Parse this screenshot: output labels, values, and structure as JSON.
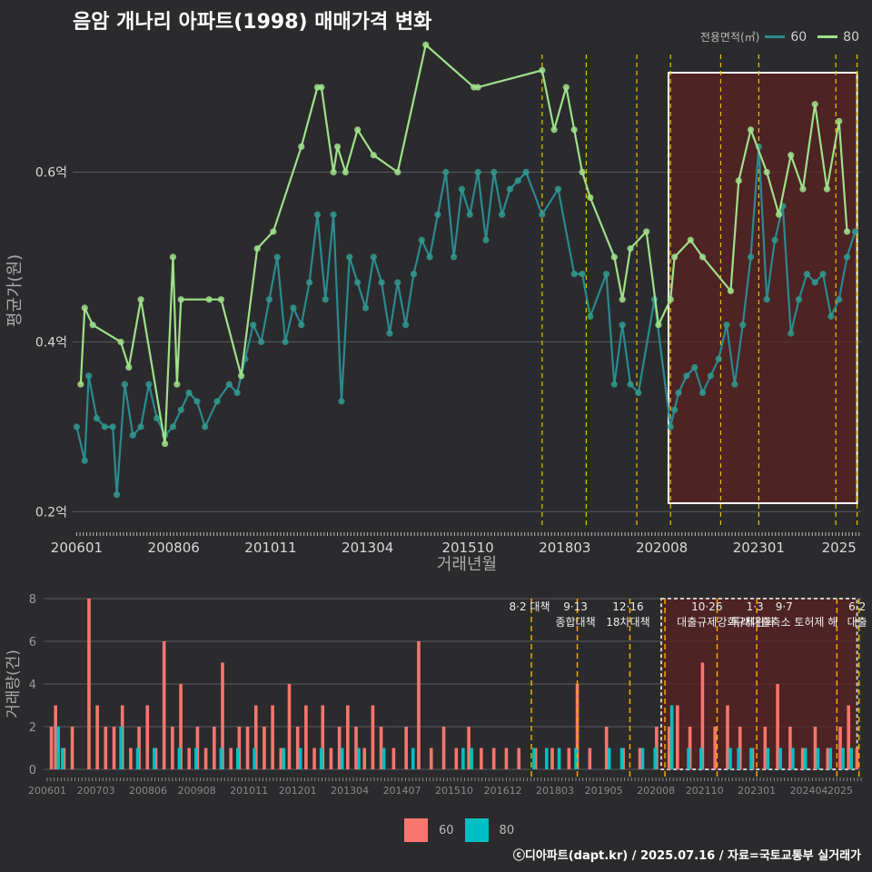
{
  "title": "음암 개나리 아파트(1998) 매매가격 변화",
  "legend_title": "전용면적(㎡)",
  "footer": "ⓒ디아파트(dapt.kr) / 2025.07.16 / 자료=국토교통부 실거래가",
  "colors": {
    "bg": "#2b2b2d",
    "grid": "#5a5a5c",
    "s60_line": "#2a8a8f",
    "s60_point": "#2f9a8e",
    "s80": "#9fe08a",
    "bar60": "#f8766d",
    "bar80": "#00bfc4",
    "policy": "#e8c400",
    "highlight_fill": "#5a2121",
    "highlight_border": "#ffffff"
  },
  "chart_data": [
    {
      "type": "line",
      "title": "음암 개나리 아파트(1998) 매매가격 변화",
      "xlabel": "거래년월",
      "ylabel": "평균가(원)",
      "x_ticks": [
        "200601",
        "200806",
        "201011",
        "201304",
        "201510",
        "201803",
        "202008",
        "202301",
        "2025"
      ],
      "y_ticks": [
        {
          "v": 0.2,
          "label": "0.2억"
        },
        {
          "v": 0.4,
          "label": "0.4억"
        },
        {
          "v": 0.6,
          "label": "0.6억"
        }
      ],
      "ylim": [
        0.18,
        0.76
      ],
      "xlim": [
        2005.9,
        2025.55
      ],
      "legend": "top-right",
      "highlight_range": [
        2020.75,
        2025.45
      ],
      "policy_dates": [
        2017.6,
        2018.7,
        2019.96,
        2020.8,
        2022.05,
        2023.0,
        2024.92,
        2025.45
      ],
      "series": [
        {
          "name": "60",
          "x": [
            2006.0,
            2006.2,
            2006.3,
            2006.5,
            2006.7,
            2006.9,
            2007.0,
            2007.2,
            2007.4,
            2007.6,
            2007.8,
            2008.0,
            2008.2,
            2008.4,
            2008.6,
            2008.8,
            2009.0,
            2009.2,
            2009.5,
            2009.8,
            2010.0,
            2010.2,
            2010.4,
            2010.6,
            2010.8,
            2011.0,
            2011.2,
            2011.4,
            2011.6,
            2011.8,
            2012.0,
            2012.2,
            2012.4,
            2012.6,
            2012.8,
            2013.0,
            2013.2,
            2013.4,
            2013.6,
            2013.8,
            2014.0,
            2014.2,
            2014.4,
            2014.6,
            2014.8,
            2015.0,
            2015.2,
            2015.4,
            2015.6,
            2015.8,
            2016.0,
            2016.2,
            2016.4,
            2016.6,
            2016.8,
            2017.0,
            2017.2,
            2017.6,
            2018.0,
            2018.4,
            2018.6,
            2018.8,
            2019.2,
            2019.4,
            2019.6,
            2019.8,
            2020.0,
            2020.4,
            2020.8,
            2020.9,
            2021.0,
            2021.2,
            2021.4,
            2021.6,
            2021.8,
            2022.0,
            2022.2,
            2022.4,
            2022.6,
            2022.8,
            2023.0,
            2023.2,
            2023.4,
            2023.6,
            2023.8,
            2024.0,
            2024.2,
            2024.4,
            2024.6,
            2024.8,
            2025.0,
            2025.2,
            2025.4
          ],
          "values": [
            0.3,
            0.26,
            0.36,
            0.31,
            0.3,
            0.3,
            0.22,
            0.35,
            0.29,
            0.3,
            0.35,
            0.31,
            0.29,
            0.3,
            0.32,
            0.34,
            0.33,
            0.3,
            0.33,
            0.35,
            0.34,
            0.38,
            0.42,
            0.4,
            0.45,
            0.5,
            0.4,
            0.44,
            0.42,
            0.47,
            0.55,
            0.45,
            0.55,
            0.33,
            0.5,
            0.47,
            0.44,
            0.5,
            0.47,
            0.41,
            0.47,
            0.42,
            0.48,
            0.52,
            0.5,
            0.55,
            0.6,
            0.5,
            0.58,
            0.55,
            0.6,
            0.52,
            0.6,
            0.55,
            0.58,
            0.59,
            0.6,
            0.55,
            0.58,
            0.48,
            0.48,
            0.43,
            0.48,
            0.35,
            0.42,
            0.35,
            0.34,
            0.45,
            0.3,
            0.32,
            0.34,
            0.36,
            0.37,
            0.34,
            0.36,
            0.38,
            0.42,
            0.35,
            0.42,
            0.5,
            0.63,
            0.45,
            0.52,
            0.56,
            0.41,
            0.45,
            0.48,
            0.47,
            0.48,
            0.43,
            0.45,
            0.5,
            0.53
          ]
        },
        {
          "name": "80",
          "x": [
            2006.1,
            2006.2,
            2006.4,
            2007.1,
            2007.3,
            2007.6,
            2008.2,
            2008.4,
            2008.5,
            2008.6,
            2009.3,
            2009.6,
            2010.1,
            2010.5,
            2010.9,
            2011.6,
            2012.0,
            2012.1,
            2012.4,
            2012.5,
            2012.7,
            2013.0,
            2013.4,
            2014.0,
            2014.7,
            2015.9,
            2016.0,
            2017.6,
            2017.9,
            2018.2,
            2018.4,
            2018.6,
            2018.8,
            2019.4,
            2019.6,
            2019.8,
            2020.2,
            2020.5,
            2020.8,
            2020.9,
            2021.3,
            2021.6,
            2022.3,
            2022.5,
            2022.8,
            2023.2,
            2023.5,
            2023.8,
            2024.1,
            2024.4,
            2024.7,
            2025.0,
            2025.2
          ],
          "values": [
            0.35,
            0.44,
            0.42,
            0.4,
            0.37,
            0.45,
            0.28,
            0.5,
            0.35,
            0.45,
            0.45,
            0.45,
            0.36,
            0.51,
            0.53,
            0.63,
            0.7,
            0.7,
            0.6,
            0.63,
            0.6,
            0.65,
            0.62,
            0.6,
            0.75,
            0.7,
            0.7,
            0.72,
            0.65,
            0.7,
            0.65,
            0.6,
            0.57,
            0.5,
            0.45,
            0.51,
            0.53,
            0.42,
            0.45,
            0.5,
            0.52,
            0.5,
            0.46,
            0.59,
            0.65,
            0.6,
            0.55,
            0.62,
            0.58,
            0.68,
            0.58,
            0.66,
            0.53
          ]
        }
      ]
    },
    {
      "type": "bar",
      "ylabel": "거래량(건)",
      "ylim": [
        0,
        8
      ],
      "y_ticks": [
        0,
        2,
        4,
        6,
        8
      ],
      "x_ticks": [
        "200601",
        "200703",
        "200806",
        "200908",
        "201011",
        "201201",
        "201304",
        "201407",
        "201510",
        "201612",
        "201803",
        "201905",
        "202008",
        "202110",
        "202301",
        "202404",
        "2025"
      ],
      "series": [
        {
          "name": "60",
          "x": [
            2006.1,
            2006.2,
            2006.4,
            2006.6,
            2007.0,
            2007.2,
            2007.4,
            2007.6,
            2007.8,
            2008.0,
            2008.2,
            2008.4,
            2008.6,
            2008.8,
            2009.0,
            2009.2,
            2009.4,
            2009.6,
            2009.8,
            2010.0,
            2010.2,
            2010.4,
            2010.6,
            2010.8,
            2011.0,
            2011.2,
            2011.4,
            2011.6,
            2011.8,
            2012.0,
            2012.2,
            2012.4,
            2012.6,
            2012.8,
            2013.0,
            2013.2,
            2013.4,
            2013.6,
            2013.8,
            2014.0,
            2014.3,
            2014.6,
            2014.9,
            2015.2,
            2015.5,
            2015.8,
            2016.1,
            2016.4,
            2016.7,
            2017.0,
            2017.3,
            2017.7,
            2018.1,
            2018.5,
            2018.7,
            2019.0,
            2019.4,
            2019.8,
            2020.2,
            2020.6,
            2020.9,
            2021.1,
            2021.4,
            2021.7,
            2022.0,
            2022.3,
            2022.6,
            2022.9,
            2023.2,
            2023.5,
            2023.8,
            2024.1,
            2024.4,
            2024.7,
            2025.0,
            2025.2,
            2025.4
          ],
          "values": [
            2,
            3,
            1,
            2,
            8,
            3,
            2,
            2,
            3,
            1,
            2,
            3,
            1,
            6,
            2,
            4,
            1,
            2,
            1,
            2,
            5,
            1,
            2,
            2,
            3,
            2,
            3,
            1,
            4,
            2,
            3,
            1,
            3,
            1,
            2,
            3,
            2,
            1,
            3,
            2,
            1,
            2,
            6,
            1,
            2,
            1,
            2,
            1,
            1,
            1,
            1,
            1,
            1,
            1,
            4,
            1,
            2,
            1,
            1,
            2,
            2,
            3,
            2,
            5,
            2,
            3,
            2,
            1,
            2,
            4,
            2,
            1,
            2,
            1,
            2,
            3,
            1
          ]
        },
        {
          "name": "80",
          "x": [
            2006.2,
            2006.3,
            2007.7,
            2008.1,
            2008.5,
            2009.1,
            2009.5,
            2010.1,
            2010.5,
            2010.9,
            2011.6,
            2012.0,
            2012.5,
            2013.0,
            2013.4,
            2014.0,
            2014.7,
            2015.9,
            2016.1,
            2017.6,
            2017.9,
            2018.2,
            2018.6,
            2019.4,
            2019.7,
            2020.2,
            2020.5,
            2020.9,
            2021.3,
            2021.6,
            2022.3,
            2022.5,
            2022.8,
            2023.2,
            2023.5,
            2023.8,
            2024.1,
            2024.4,
            2024.7,
            2025.0,
            2025.2
          ],
          "values": [
            2,
            1,
            2,
            1,
            1,
            1,
            1,
            1,
            1,
            1,
            1,
            1,
            1,
            1,
            1,
            1,
            1,
            1,
            1,
            1,
            1,
            1,
            1,
            1,
            1,
            1,
            1,
            3,
            1,
            1,
            1,
            1,
            1,
            1,
            1,
            1,
            1,
            1,
            1,
            1,
            1
          ]
        }
      ],
      "policy_labels": [
        {
          "date": 2017.6,
          "lines": [
            "8·2 대책"
          ]
        },
        {
          "date": 2018.7,
          "lines": [
            "9·13",
            "종합대책"
          ]
        },
        {
          "date": 2019.96,
          "lines": [
            "12·16",
            "18차대책"
          ]
        },
        {
          "date": 2021.85,
          "lines": [
            "10·26",
            "대출규제강화"
          ]
        },
        {
          "date": 2023.0,
          "lines": [
            "1·3",
            "규제완화"
          ]
        },
        {
          "date": 2023.7,
          "lines": [
            "9·7",
            "특례대출축소 토허제 해"
          ]
        },
        {
          "date": 2025.45,
          "lines": [
            "6·2",
            "대출"
          ]
        }
      ]
    }
  ]
}
